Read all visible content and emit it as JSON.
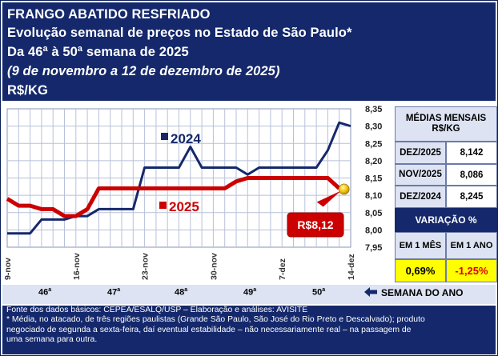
{
  "header": {
    "line1": "FRANGO ABATIDO RESFRIADO",
    "line2": "Evolução semanal de preços no Estado de São Paulo*",
    "line3": "Da 46ª à 50ª semana de 2025",
    "line4": "(9 de novembro a 12 de dezembro de 2025)",
    "line5": "R$/KG"
  },
  "chart_data": {
    "type": "line",
    "x": [
      "9-nov",
      "10-nov",
      "11-nov",
      "12-nov",
      "13-nov",
      "14-nov",
      "16-nov",
      "17-nov",
      "18-nov",
      "19-nov",
      "20-nov",
      "21-nov",
      "23-nov",
      "24-nov",
      "25-nov",
      "26-nov",
      "27-nov",
      "28-nov",
      "30-nov",
      "1-dez",
      "2-dez",
      "3-dez",
      "4-dez",
      "5-dez",
      "7-dez",
      "8-dez",
      "9-dez",
      "10-dez",
      "11-dez",
      "12-dez",
      "14-dez"
    ],
    "x_tick_labels": [
      "9-nov",
      "16-nov",
      "23-nov",
      "30-nov",
      "7-dez",
      "14-dez"
    ],
    "series": [
      {
        "name": "2024",
        "color": "#14286b",
        "values": [
          7.99,
          7.99,
          7.99,
          8.03,
          8.03,
          8.03,
          8.04,
          8.04,
          8.06,
          8.06,
          8.06,
          8.06,
          8.18,
          8.18,
          8.18,
          8.18,
          8.24,
          8.18,
          8.18,
          8.18,
          8.18,
          8.16,
          8.18,
          8.18,
          8.18,
          8.18,
          8.18,
          8.18,
          8.23,
          8.31,
          8.3
        ]
      },
      {
        "name": "2025",
        "color": "#cc0000",
        "values": [
          8.09,
          8.07,
          8.07,
          8.06,
          8.06,
          8.04,
          8.04,
          8.06,
          8.12,
          8.12,
          8.12,
          8.12,
          8.12,
          8.12,
          8.12,
          8.12,
          8.12,
          8.12,
          8.12,
          8.12,
          8.14,
          8.15,
          8.15,
          8.15,
          8.15,
          8.15,
          8.15,
          8.15,
          8.15,
          8.12,
          null
        ]
      }
    ],
    "ylim": [
      7.95,
      8.35
    ],
    "yticks": [
      "8,35",
      "8,30",
      "8,25",
      "8,20",
      "8,15",
      "8,10",
      "8,05",
      "8,00",
      "7,95"
    ],
    "grid": true,
    "legend": [
      "2024",
      "2025"
    ],
    "callout": "R$8,12"
  },
  "monthly": {
    "title": "MÉDIAS MENSAIS R$/KG",
    "rows": [
      {
        "label": "DEZ/2025",
        "value": "8,142"
      },
      {
        "label": "NOV/2025",
        "value": "8,086"
      },
      {
        "label": "DEZ/2024",
        "value": "8,245"
      }
    ]
  },
  "variation": {
    "title": "VARIAÇÃO %",
    "col1": "EM 1 MÊS",
    "col2": "EM 1 ANO",
    "val1": "0,69%",
    "val2": "-1,25%",
    "val2_color": "#e00000"
  },
  "weeks": {
    "items": [
      "46",
      "47",
      "48",
      "49",
      "50"
    ],
    "ordinal": "a",
    "label": "SEMANA DO ANO",
    "arrow_icon": "arrow-left-icon"
  },
  "footer": {
    "line1": "Fonte dos dados básicos: CEPEA/ESALQ/USP – Elaboração e análises: AVISITE",
    "line2": "* Média, no atacado, de três regiões paulistas (Grande São Paulo, São José do Rio Preto e Descalvado); produto",
    "line3": "negociado de segunda a sexta-feira, daí eventual estabilidade – não necessariamente real – na passagem de",
    "line4": "uma semana para outra."
  }
}
